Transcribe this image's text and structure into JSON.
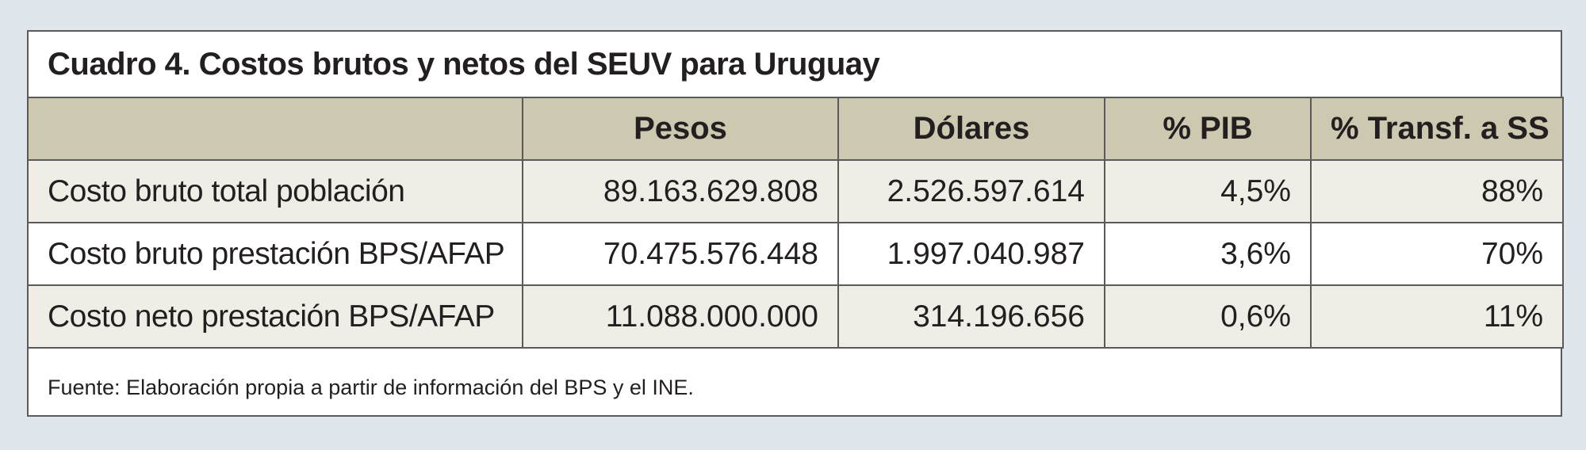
{
  "title": "Cuadro 4. Costos brutos y netos del SEUV para Uruguay",
  "table": {
    "headers": [
      "",
      "Pesos",
      "Dólares",
      "% PIB",
      "% Transf. a SS"
    ],
    "rows": [
      [
        "Costo bruto total población",
        "89.163.629.808",
        "2.526.597.614",
        "4,5%",
        "88%"
      ],
      [
        "Costo bruto prestación BPS/AFAP",
        "70.475.576.448",
        "1.997.040.987",
        "3,6%",
        "70%"
      ],
      [
        "Costo neto prestación BPS/AFAP",
        "11.088.000.000",
        "314.196.656",
        "0,6%",
        "11%"
      ]
    ]
  },
  "source": "Fuente: Elaboración propia a partir de información del BPS y el INE.",
  "colors": {
    "background": "#dfe6ec",
    "header_fill": "#cdc8b0",
    "shaded_row": "#efede6",
    "border": "#5a5a5a"
  }
}
